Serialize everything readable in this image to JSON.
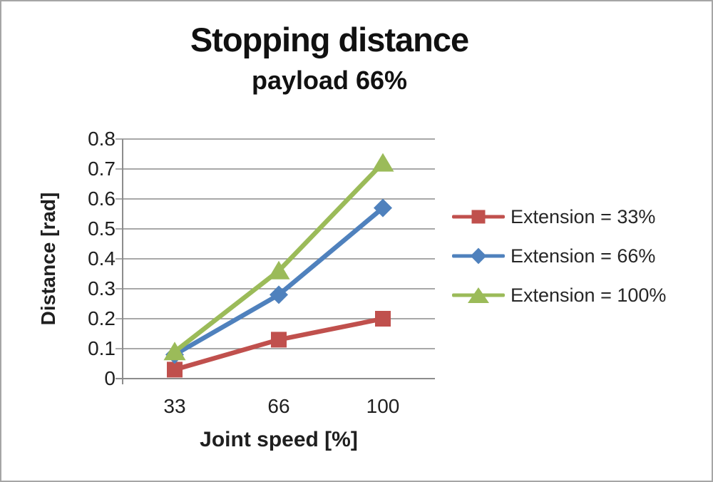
{
  "chart_data": {
    "type": "line",
    "title": "Stopping distance",
    "subtitle": "payload 66%",
    "xlabel": "Joint speed [%]",
    "ylabel": "Distance [rad]",
    "categories": [
      "33",
      "66",
      "100"
    ],
    "ytick_labels": [
      "0.8",
      "0.7",
      "0.6",
      "0.5",
      "0.4",
      "0.3",
      "0.2",
      "0.1",
      "0"
    ],
    "ylim": [
      0,
      0.8
    ],
    "grid": "horizontal",
    "legend_position": "right",
    "axis_color": "#8c8c8c",
    "background_color": "#ffffff",
    "border_color": "#a6a6a6",
    "series": [
      {
        "name": "Extension = 33%",
        "marker": "square",
        "color": "#C0504D",
        "values": [
          0.03,
          0.13,
          0.2
        ]
      },
      {
        "name": "Extension = 66%",
        "marker": "diamond",
        "color": "#4F81BD",
        "values": [
          0.08,
          0.28,
          0.57
        ]
      },
      {
        "name": "Extension = 100%",
        "marker": "triangle",
        "color": "#9BBB59",
        "values": [
          0.09,
          0.36,
          0.72
        ]
      }
    ]
  }
}
